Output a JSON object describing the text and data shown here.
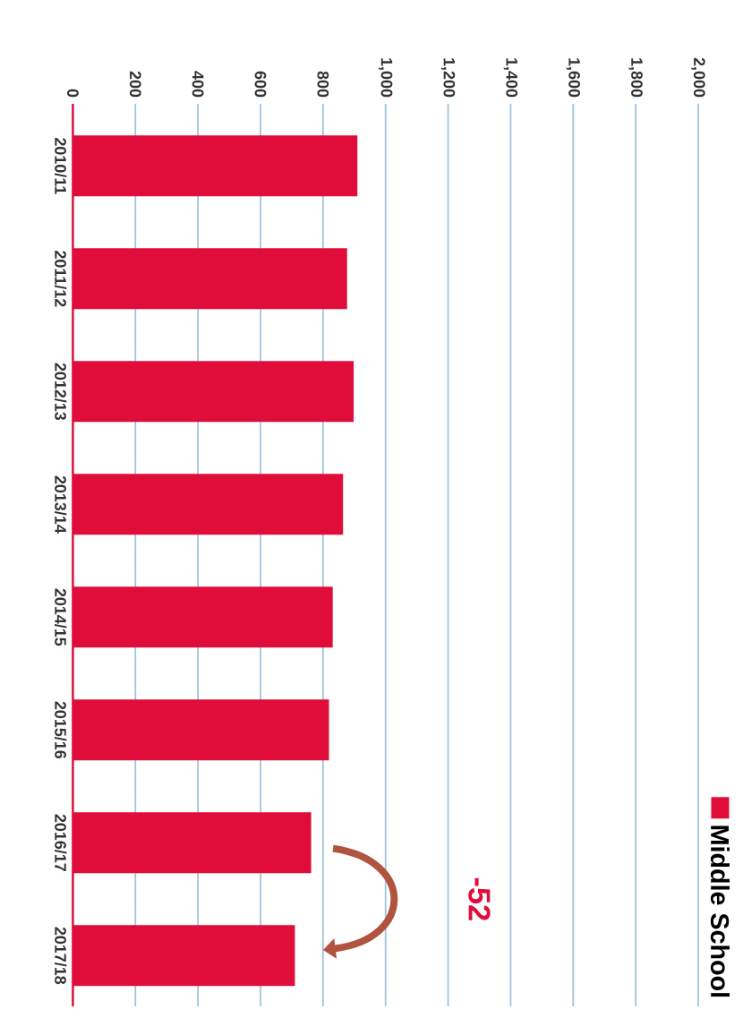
{
  "chart_data": {
    "type": "bar",
    "orientation": "horizontal",
    "categories": [
      "2010/11",
      "2011/12",
      "2012/13",
      "2013/14",
      "2014/15",
      "2015/16",
      "2016/17",
      "2017/18"
    ],
    "series": [
      {
        "name": "Middle School",
        "color": "#e00d3a",
        "values": [
          910,
          877,
          898,
          864,
          831,
          819,
          762,
          710
        ]
      }
    ],
    "xlim": [
      0,
      2000
    ],
    "xticks": [
      0,
      200,
      400,
      600,
      800,
      {
        "value": 1000,
        "label": "1,000"
      },
      {
        "value": 1200,
        "label": "1,200"
      },
      {
        "value": 1400,
        "label": "1,400"
      },
      {
        "value": 1600,
        "label": "1,600"
      },
      {
        "value": 1800,
        "label": "1,800"
      },
      {
        "value": 2000,
        "label": "2,000"
      }
    ],
    "grid": "x",
    "legend": "right",
    "annotations": [
      "-52"
    ]
  }
}
